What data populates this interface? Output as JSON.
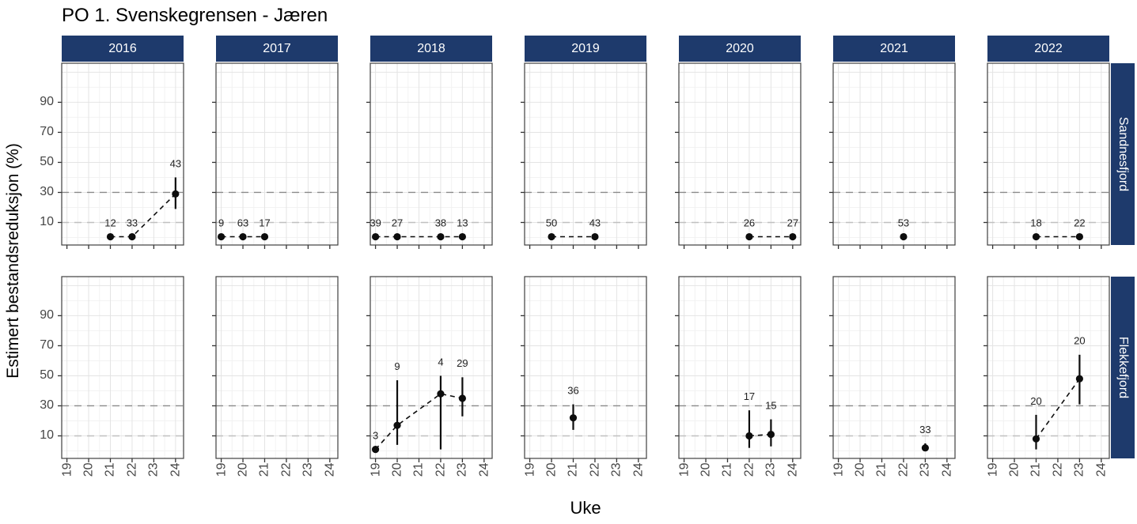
{
  "chart_data": {
    "type": "scatter",
    "title": "PO 1. Svenskegrensen - Jæren",
    "xlabel": "Uke",
    "ylabel": "Estimert bestandsreduksjon (%)",
    "x_ticks": [
      19,
      20,
      21,
      22,
      23,
      24
    ],
    "y_ticks": [
      10,
      30,
      50,
      70,
      90
    ],
    "xlim": [
      18.76,
      24.37
    ],
    "ylim": [
      -5,
      116
    ],
    "grid": true,
    "hlines": [
      {
        "y": 30,
        "color": "#8a8a8a"
      },
      {
        "y": 10,
        "color": "#c0c0c0"
      }
    ],
    "col_facets": [
      "2016",
      "2017",
      "2018",
      "2019",
      "2020",
      "2021",
      "2022"
    ],
    "row_facets": [
      "Sandnesfjord",
      "Flekkefjord"
    ],
    "series_note": "points: week (x), value (y, % estimated reduction), lower/upper error bounds, label = count shown above point",
    "panels": [
      {
        "row": "Sandnesfjord",
        "col": "2016",
        "points": [
          {
            "week": 21,
            "value": 0.5,
            "lower": null,
            "upper": null,
            "label": "12"
          },
          {
            "week": 22,
            "value": 0.5,
            "lower": null,
            "upper": null,
            "label": "33"
          },
          {
            "week": 24,
            "value": 29,
            "lower": 19,
            "upper": 40,
            "label": "43"
          }
        ]
      },
      {
        "row": "Sandnesfjord",
        "col": "2017",
        "points": [
          {
            "week": 19,
            "value": 0.5,
            "lower": null,
            "upper": null,
            "label": "9"
          },
          {
            "week": 20,
            "value": 0.5,
            "lower": null,
            "upper": null,
            "label": "63"
          },
          {
            "week": 21,
            "value": 0.5,
            "lower": null,
            "upper": null,
            "label": "17"
          }
        ]
      },
      {
        "row": "Sandnesfjord",
        "col": "2018",
        "points": [
          {
            "week": 19,
            "value": 0.5,
            "lower": null,
            "upper": null,
            "label": "39"
          },
          {
            "week": 20,
            "value": 0.5,
            "lower": null,
            "upper": null,
            "label": "27"
          },
          {
            "week": 22,
            "value": 0.5,
            "lower": null,
            "upper": null,
            "label": "38"
          },
          {
            "week": 23,
            "value": 0.5,
            "lower": null,
            "upper": null,
            "label": "13"
          }
        ]
      },
      {
        "row": "Sandnesfjord",
        "col": "2019",
        "points": [
          {
            "week": 20,
            "value": 0.5,
            "lower": null,
            "upper": null,
            "label": "50"
          },
          {
            "week": 22,
            "value": 0.5,
            "lower": null,
            "upper": null,
            "label": "43"
          }
        ]
      },
      {
        "row": "Sandnesfjord",
        "col": "2020",
        "points": [
          {
            "week": 22,
            "value": 0.5,
            "lower": null,
            "upper": null,
            "label": "26"
          },
          {
            "week": 24,
            "value": 0.5,
            "lower": null,
            "upper": null,
            "label": "27"
          }
        ]
      },
      {
        "row": "Sandnesfjord",
        "col": "2021",
        "points": [
          {
            "week": 22,
            "value": 0.5,
            "lower": null,
            "upper": null,
            "label": "53"
          }
        ]
      },
      {
        "row": "Sandnesfjord",
        "col": "2022",
        "points": [
          {
            "week": 21,
            "value": 0.5,
            "lower": null,
            "upper": null,
            "label": "18"
          },
          {
            "week": 23,
            "value": 0.5,
            "lower": null,
            "upper": null,
            "label": "22"
          }
        ]
      },
      {
        "row": "Flekkefjord",
        "col": "2016",
        "points": []
      },
      {
        "row": "Flekkefjord",
        "col": "2017",
        "points": []
      },
      {
        "row": "Flekkefjord",
        "col": "2018",
        "points": [
          {
            "week": 19,
            "value": 1,
            "lower": null,
            "upper": null,
            "label": "3"
          },
          {
            "week": 20,
            "value": 17,
            "lower": 4,
            "upper": 47,
            "label": "9"
          },
          {
            "week": 22,
            "value": 38,
            "lower": 1,
            "upper": 50,
            "label": "4"
          },
          {
            "week": 23,
            "value": 35,
            "lower": 23,
            "upper": 49,
            "label": "29"
          }
        ]
      },
      {
        "row": "Flekkefjord",
        "col": "2019",
        "points": [
          {
            "week": 21,
            "value": 22,
            "lower": 14,
            "upper": 31,
            "label": "36"
          }
        ]
      },
      {
        "row": "Flekkefjord",
        "col": "2020",
        "points": [
          {
            "week": 22,
            "value": 10,
            "lower": 2,
            "upper": 27,
            "label": "17"
          },
          {
            "week": 23,
            "value": 11,
            "lower": 3,
            "upper": 21,
            "label": "15"
          }
        ]
      },
      {
        "row": "Flekkefjord",
        "col": "2021",
        "points": [
          {
            "week": 23,
            "value": 2,
            "lower": 0,
            "upper": 5,
            "label": "33"
          }
        ]
      },
      {
        "row": "Flekkefjord",
        "col": "2022",
        "points": [
          {
            "week": 21,
            "value": 8,
            "lower": 1,
            "upper": 24,
            "label": "20"
          },
          {
            "week": 23,
            "value": 48,
            "lower": 31,
            "upper": 64,
            "label": "20"
          }
        ]
      }
    ],
    "colors": {
      "strip_fill": "#1e3a6c",
      "strip_text": "#ffffff",
      "point": "#0d0d0d",
      "grid_major": "#e4e4e4",
      "grid_minor": "#f2f2f2",
      "panel_border": "#3f3f3f",
      "tick": "#333333",
      "axis_text": "#454545"
    }
  }
}
